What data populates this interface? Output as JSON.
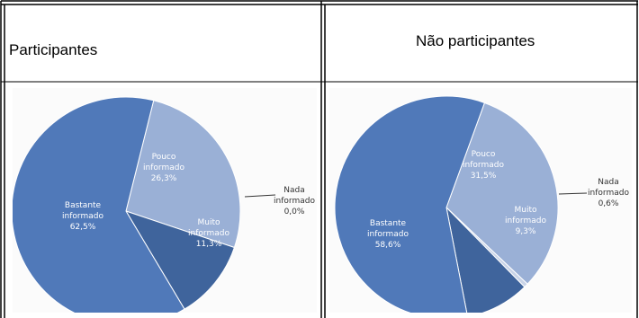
{
  "table": {
    "headers": [
      "Participantes",
      "Não participantes"
    ]
  },
  "chart_data": [
    {
      "type": "pie",
      "title": "Participantes",
      "slices": [
        {
          "label_lines": [
            "Pouco",
            "informado"
          ],
          "value_text": "26,3%",
          "value": 26.3,
          "color": "#9ab0d6"
        },
        {
          "label_lines": [
            "Nada",
            "informado"
          ],
          "value_text": "0,0%",
          "value": 0.0,
          "color": "#c9d4e8"
        },
        {
          "label_lines": [
            "Muito",
            "informado"
          ],
          "value_text": "11,3%",
          "value": 11.3,
          "color": "#3f649c"
        },
        {
          "label_lines": [
            "Bastante",
            "informado"
          ],
          "value_text": "62,5%",
          "value": 62.5,
          "color": "#5079b9"
        }
      ]
    },
    {
      "type": "pie",
      "title": "Não participantes",
      "slices": [
        {
          "label_lines": [
            "Pouco",
            "informado"
          ],
          "value_text": "31,5%",
          "value": 31.5,
          "color": "#9ab0d6"
        },
        {
          "label_lines": [
            "Nada",
            "informado"
          ],
          "value_text": "0,6%",
          "value": 0.6,
          "color": "#c9d4e8"
        },
        {
          "label_lines": [
            "Muito",
            "informado"
          ],
          "value_text": "9,3%",
          "value": 9.3,
          "color": "#3f649c"
        },
        {
          "label_lines": [
            "Bastante",
            "informado"
          ],
          "value_text": "58,6%",
          "value": 58.6,
          "color": "#5079b9"
        }
      ]
    }
  ]
}
